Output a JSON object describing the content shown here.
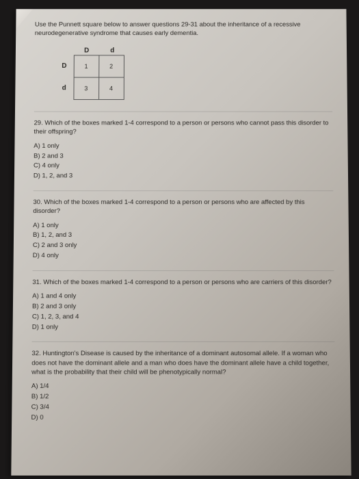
{
  "intro": "Use the Punnett square below to answer questions 29-31 about the inheritance of a recessive neurodegenerative syndrome that causes early dementia.",
  "punnett": {
    "col_headers": [
      "D",
      "d"
    ],
    "row_headers": [
      "D",
      "d"
    ],
    "cells": [
      [
        "1",
        "2"
      ],
      [
        "3",
        "4"
      ]
    ]
  },
  "questions": [
    {
      "num": "29.",
      "text": "Which of the boxes marked 1-4 correspond to a person or persons who cannot pass this disorder to their offspring?",
      "options": [
        "A) 1 only",
        "B) 2 and 3",
        "C) 4 only",
        "D) 1, 2, and 3"
      ]
    },
    {
      "num": "30.",
      "text": "Which of the boxes marked 1-4 correspond to a person or persons who are affected by this disorder?",
      "options": [
        "A) 1 only",
        "B) 1, 2, and 3",
        "C) 2 and 3 only",
        "D) 4 only"
      ]
    },
    {
      "num": "31.",
      "text": "Which of the boxes marked 1-4 correspond to a person or persons who are carriers of this disorder?",
      "options": [
        "A) 1 and 4 only",
        "B) 2 and 3 only",
        "C) 1, 2, 3, and 4",
        "D) 1 only"
      ]
    },
    {
      "num": "32.",
      "text": "Huntington's Disease is caused by the inheritance of a dominant autosomal allele. If a woman who does not have the dominant allele and a man who does have the dominant allele have a child together, what is the probability that their child will be phenotypically normal?",
      "options": [
        "A) 1/4",
        "B) 1/2",
        "C) 3/4",
        "D) 0"
      ]
    }
  ]
}
